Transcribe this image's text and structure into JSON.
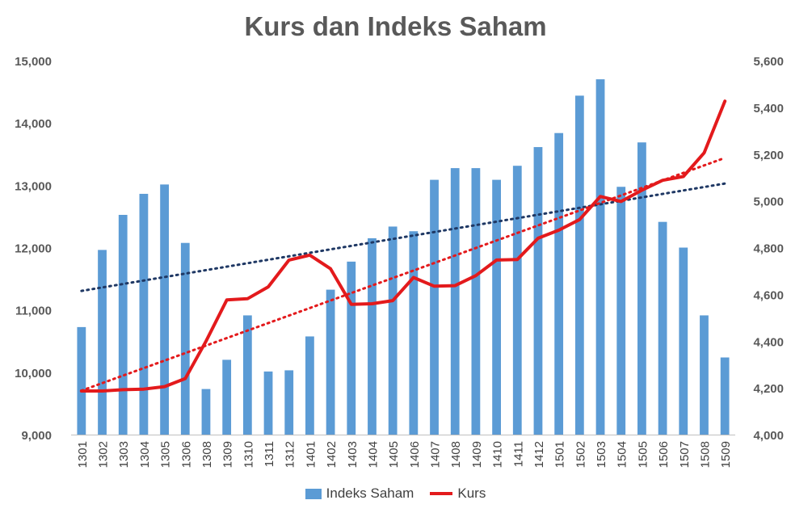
{
  "chart_data": {
    "type": "bar+line",
    "title": "Kurs dan Indeks Saham",
    "categories": [
      "1301",
      "1302",
      "1303",
      "1304",
      "1305",
      "1306",
      "1308",
      "1309",
      "1310",
      "1311",
      "1312",
      "1401",
      "1402",
      "1403",
      "1404",
      "1405",
      "1406",
      "1407",
      "1408",
      "1409",
      "1410",
      "1411",
      "1412",
      "1501",
      "1502",
      "1503",
      "1504",
      "1505",
      "1506",
      "1507",
      "1508",
      "1509"
    ],
    "series": [
      {
        "name": "Indeks Saham",
        "type": "bar",
        "axis": "left",
        "color": "#5b9bd5",
        "values": [
          4460,
          4790,
          4940,
          5030,
          5070,
          4820,
          4195,
          4320,
          4510,
          4270,
          4275,
          4420,
          4620,
          4740,
          4840,
          4890,
          4870,
          5090,
          5140,
          5140,
          5090,
          5150,
          5230,
          5290,
          5450,
          5520,
          5060,
          5250,
          4910,
          4800,
          4510,
          4330
        ]
      },
      {
        "name": "Kurs",
        "type": "line",
        "axis": "right",
        "color": "#e31a1c",
        "values": [
          9700,
          9700,
          9720,
          9730,
          9770,
          9900,
          10500,
          11160,
          11180,
          11370,
          11800,
          11880,
          11660,
          11090,
          11100,
          11150,
          11520,
          11380,
          11390,
          11550,
          11800,
          11810,
          12150,
          12280,
          12450,
          12820,
          12740,
          12920,
          13080,
          13140,
          13520,
          14350
        ]
      }
    ],
    "trendlines": [
      {
        "of": "Indeks Saham",
        "type": "linear",
        "style": "dotted",
        "color": "#1f3864"
      },
      {
        "of": "Kurs",
        "type": "linear",
        "style": "dotted",
        "color": "#e31a1c"
      }
    ],
    "y_left": {
      "min": 4000,
      "max": 5600,
      "step": 200,
      "ticks": [
        "4,000",
        "4,200",
        "4,400",
        "4,600",
        "4,800",
        "5,000",
        "5,200",
        "5,400",
        "5,600"
      ]
    },
    "y_right": {
      "min": 9000,
      "max": 15000,
      "step": 1000,
      "ticks": [
        "9,000",
        "10,000",
        "11,000",
        "12,000",
        "13,000",
        "14,000",
        "15,000"
      ]
    },
    "grid": false,
    "legend_position": "bottom"
  }
}
